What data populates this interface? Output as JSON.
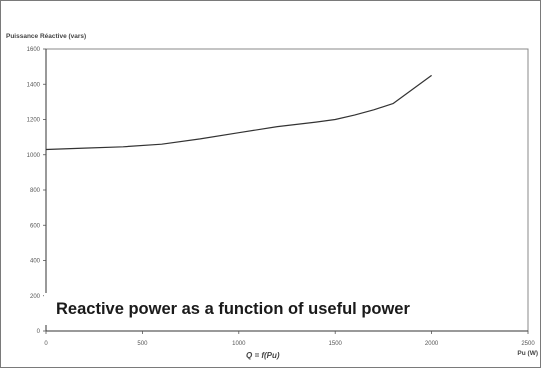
{
  "caption": "Reactive power as a function of useful power",
  "formula": "Q = f(Pu)",
  "chart_data": {
    "type": "line",
    "title": "",
    "ylabel": "Puissance Réactive (vars)",
    "xlabel": "Pu (W)",
    "xlim": [
      0,
      2500
    ],
    "ylim": [
      0,
      1600
    ],
    "xticks": [
      0,
      500,
      1000,
      1500,
      2000,
      2500
    ],
    "xtick_labels": [
      "0",
      "500",
      "1000",
      "1500",
      "2000",
      "2500"
    ],
    "yticks": [
      0,
      200,
      400,
      600,
      800,
      1000,
      1200,
      1400,
      1600
    ],
    "ytick_labels": [
      "0",
      "200",
      "400",
      "600",
      "800",
      "1000",
      "1200",
      "1400",
      "1600"
    ],
    "grid": false,
    "series": [
      {
        "x": [
          0,
          200,
          400,
          600,
          800,
          1000,
          1200,
          1400,
          1500,
          1600,
          1700,
          1800,
          1900,
          2000
        ],
        "y": [
          1030,
          1038,
          1045,
          1060,
          1090,
          1125,
          1160,
          1185,
          1200,
          1225,
          1255,
          1290,
          1370,
          1450
        ]
      }
    ],
    "color": "#333333"
  }
}
